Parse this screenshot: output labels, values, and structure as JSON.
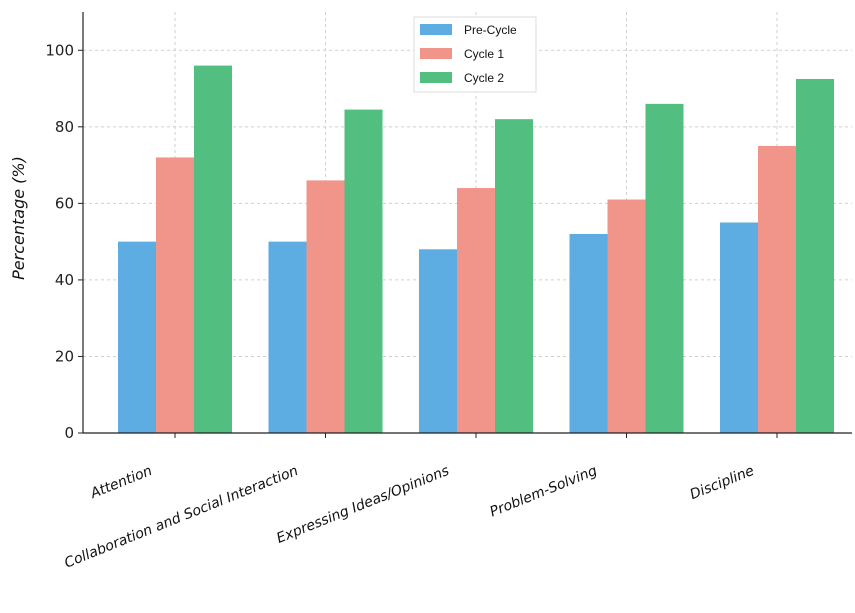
{
  "chart_data": {
    "type": "bar",
    "title": "",
    "xlabel": "",
    "ylabel": "Percentage (%)",
    "ylim": [
      0,
      110
    ],
    "yticks": [
      0,
      20,
      40,
      60,
      80,
      100
    ],
    "grid": true,
    "legend_position": "top-center",
    "categories": [
      "Attention",
      "Collaboration and Social Interaction",
      "Expressing Ideas/Opinions",
      "Problem-Solving",
      "Discipline"
    ],
    "series": [
      {
        "name": "Pre-Cycle",
        "color": "#5dade2",
        "values": [
          50,
          50,
          48,
          52,
          55
        ]
      },
      {
        "name": "Cycle 1",
        "color": "#f1948a",
        "values": [
          72,
          66,
          64,
          61,
          75
        ]
      },
      {
        "name": "Cycle 2",
        "color": "#52be80",
        "values": [
          96,
          84.5,
          82,
          86,
          92.5
        ]
      }
    ]
  }
}
